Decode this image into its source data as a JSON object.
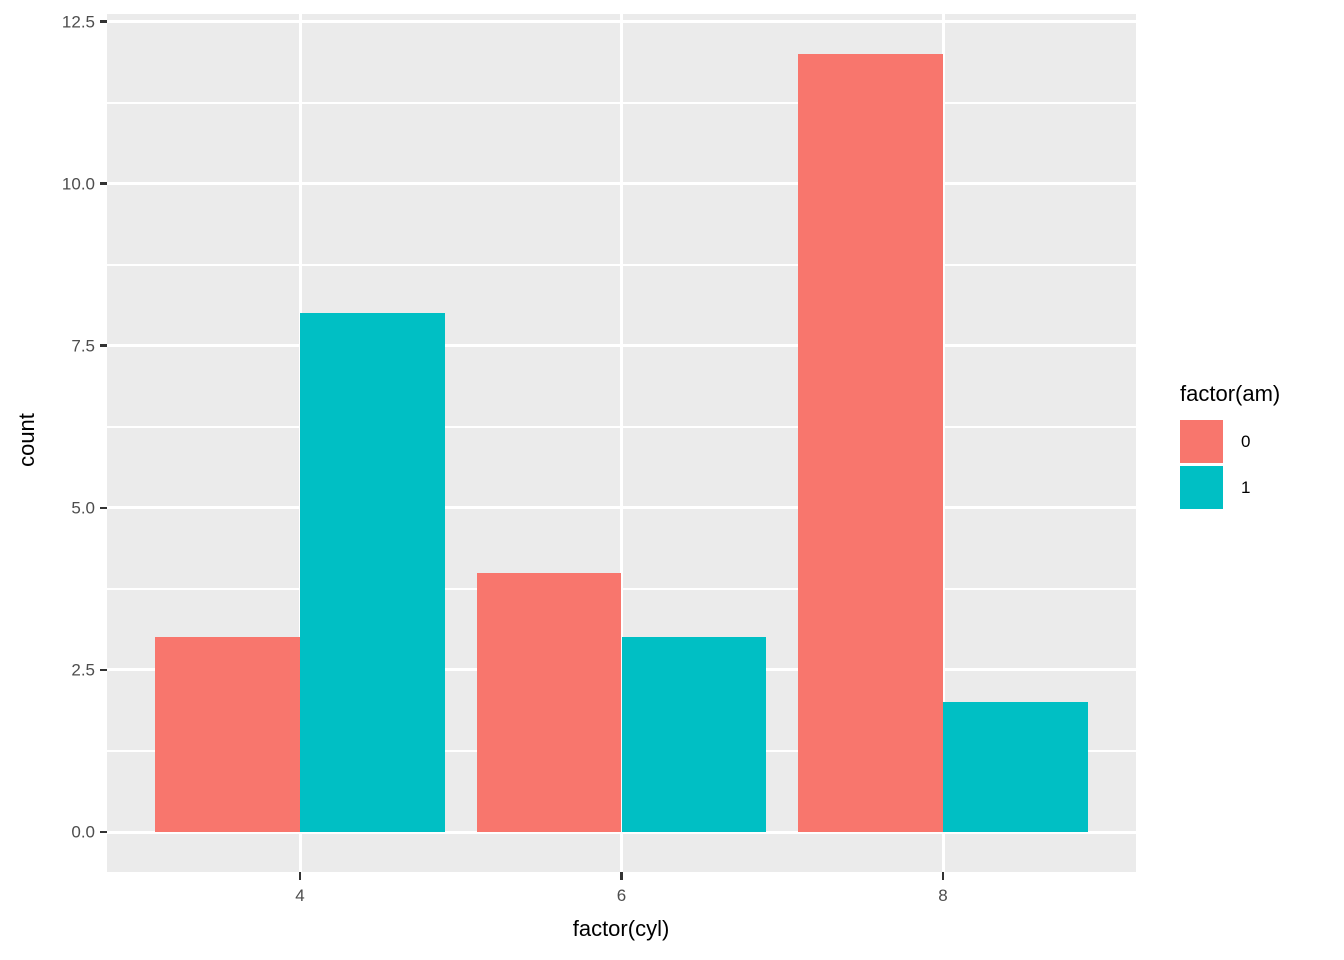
{
  "chart_data": {
    "type": "bar",
    "title": "",
    "xlabel": "factor(cyl)",
    "ylabel": "count",
    "legend_title": "factor(am)",
    "legend_position": "right",
    "categories": [
      "4",
      "6",
      "8"
    ],
    "series": [
      {
        "name": "0",
        "color": "#F8766D",
        "values": [
          3,
          4,
          12
        ]
      },
      {
        "name": "1",
        "color": "#00BFC4",
        "values": [
          8,
          3,
          2
        ]
      }
    ],
    "bar_layout": "dodge",
    "y_tick_labels": [
      "0.0",
      "2.5",
      "5.0",
      "7.5",
      "10.0",
      "12.5"
    ],
    "y_tick_values": [
      0,
      2.5,
      5,
      7.5,
      10,
      12.5
    ],
    "y_minor_values": [
      1.25,
      3.75,
      6.25,
      8.75,
      11.25
    ],
    "ylim": [
      -0.6,
      12.6
    ],
    "grid": "major and minor horizontal white lines, major vertical at categories",
    "panel_bg": "#EBEBEB",
    "grid_color": "#FFFFFF",
    "tick_mark_color": "#333333",
    "tick_label_color": "#4D4D4D",
    "axis_title_color": "#000000"
  }
}
